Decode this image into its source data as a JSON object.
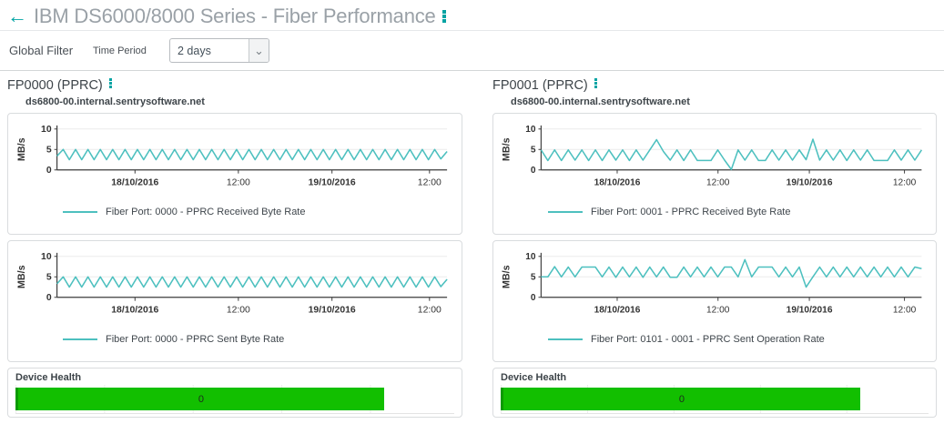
{
  "header": {
    "back_icon": "←",
    "title": "IBM DS6000/8000 Series - Fiber Performance",
    "menu_icon": "vertical-dots",
    "accent_color": "#00a3a3"
  },
  "filter": {
    "title": "Global Filter",
    "field_label": "Time Period",
    "selected_value": "2 days",
    "chevron": "⌄"
  },
  "panels": [
    {
      "title": "FP0000 (PPRC)",
      "host": "ds6800-00.internal.sentrysoftware.net",
      "health": {
        "label": "Device Health",
        "value": "0",
        "color": "#12bf00"
      }
    },
    {
      "title": "FP0001 (PPRC)",
      "host": "ds6800-00.internal.sentrysoftware.net",
      "health": {
        "label": "Device Health",
        "value": "0",
        "color": "#12bf00"
      }
    }
  ],
  "chart_data": [
    {
      "type": "line",
      "panel": "FP0000 (PPRC)",
      "legend": "Fiber Port: 0000 - PPRC Received Byte Rate",
      "color": "#4dc0bf",
      "ylabel": "MB/s",
      "ylim": [
        0,
        10
      ],
      "yticks": [
        0,
        5,
        10
      ],
      "grid": true,
      "legend_position": "bottom-left",
      "xticks": [
        {
          "label": "18/10/2016",
          "pos": 0.2,
          "bold": true
        },
        {
          "label": "12:00",
          "pos": 0.465,
          "bold": false
        },
        {
          "label": "19/10/2016",
          "pos": 0.705,
          "bold": true
        },
        {
          "label": "12:00",
          "pos": 0.955,
          "bold": false
        }
      ],
      "values": [
        3.4,
        5,
        2.5,
        5,
        2.5,
        5,
        2.5,
        5,
        2.5,
        5,
        2.5,
        5,
        2.5,
        5,
        2.5,
        5,
        2.5,
        5,
        2.5,
        5,
        2.5,
        5,
        2.5,
        5,
        2.5,
        5,
        2.5,
        5,
        2.5,
        5,
        2.5,
        5,
        2.5,
        5,
        2.5,
        5,
        2.5,
        5,
        2.5,
        5,
        2.5,
        5,
        2.5,
        5,
        2.5,
        5,
        2.5,
        5,
        2.5,
        5,
        2.5,
        5,
        2.5,
        5,
        2.5,
        5,
        2.5,
        5,
        2.5,
        5,
        2.5,
        5,
        2.7,
        4.5
      ]
    },
    {
      "type": "line",
      "panel": "FP0000 (PPRC)",
      "legend": "Fiber Port: 0000 - PPRC Sent Byte Rate",
      "color": "#4dc0bf",
      "ylabel": "MB/s",
      "ylim": [
        0,
        10
      ],
      "yticks": [
        0,
        5,
        10
      ],
      "grid": true,
      "legend_position": "bottom-left",
      "xticks": [
        {
          "label": "18/10/2016",
          "pos": 0.2,
          "bold": true
        },
        {
          "label": "12:00",
          "pos": 0.465,
          "bold": false
        },
        {
          "label": "19/10/2016",
          "pos": 0.705,
          "bold": true
        },
        {
          "label": "12:00",
          "pos": 0.955,
          "bold": false
        }
      ],
      "values": [
        3.3,
        5,
        2.5,
        5,
        2.5,
        5,
        2.5,
        5,
        2.5,
        5,
        2.5,
        5,
        2.5,
        5,
        2.5,
        5,
        2.5,
        5,
        2.5,
        5,
        2.5,
        5,
        2.5,
        5,
        2.5,
        5,
        2.5,
        5,
        2.5,
        5,
        2.5,
        5,
        2.5,
        5,
        2.5,
        5,
        2.5,
        5,
        2.5,
        5,
        2.5,
        5,
        2.5,
        5,
        2.5,
        5,
        2.5,
        5,
        2.5,
        5,
        2.5,
        5,
        2.5,
        5,
        2.5,
        5,
        2.5,
        5,
        2.5,
        5,
        2.5,
        5,
        2.6,
        4.4
      ]
    },
    {
      "type": "line",
      "panel": "FP0001 (PPRC)",
      "legend": "Fiber Port: 0001 - PPRC Received Byte Rate",
      "color": "#4dc0bf",
      "ylabel": "MB/s",
      "ylim": [
        0,
        10
      ],
      "yticks": [
        0,
        5,
        10
      ],
      "grid": true,
      "legend_position": "bottom-left",
      "xticks": [
        {
          "label": "18/10/2016",
          "pos": 0.2,
          "bold": true
        },
        {
          "label": "12:00",
          "pos": 0.465,
          "bold": false
        },
        {
          "label": "19/10/2016",
          "pos": 0.705,
          "bold": true
        },
        {
          "label": "12:00",
          "pos": 0.955,
          "bold": false
        }
      ],
      "values": [
        4.9,
        2.3,
        4.9,
        2.3,
        4.9,
        2.4,
        4.9,
        2.3,
        4.9,
        2.3,
        4.9,
        2.4,
        4.9,
        2.3,
        4.9,
        2.4,
        4.9,
        7.4,
        4.5,
        2.4,
        4.9,
        2.3,
        4.9,
        2.3,
        2.3,
        2.3,
        4.9,
        2.4,
        0.1,
        4.9,
        2.4,
        4.9,
        2.3,
        2.3,
        4.9,
        2.4,
        4.9,
        2.4,
        4.9,
        2.5,
        7.5,
        2.4,
        4.9,
        2.4,
        4.9,
        2.3,
        4.9,
        2.4,
        4.9,
        2.3,
        2.3,
        2.3,
        4.9,
        2.4,
        4.9,
        2.4,
        4.9
      ]
    },
    {
      "type": "line",
      "panel": "FP0001 (PPRC)",
      "legend": "Fiber Port: 0101 - 0001 - PPRC Sent Operation Rate",
      "color": "#4dc0bf",
      "ylabel": "MB/s",
      "ylim": [
        0,
        10
      ],
      "yticks": [
        0,
        5,
        10
      ],
      "grid": true,
      "legend_position": "bottom-left",
      "xticks": [
        {
          "label": "18/10/2016",
          "pos": 0.2,
          "bold": true
        },
        {
          "label": "12:00",
          "pos": 0.465,
          "bold": false
        },
        {
          "label": "19/10/2016",
          "pos": 0.705,
          "bold": true
        },
        {
          "label": "12:00",
          "pos": 0.955,
          "bold": false
        }
      ],
      "values": [
        5,
        5,
        7.5,
        5,
        7.4,
        5,
        7.4,
        7.4,
        7.4,
        5,
        7.4,
        4.9,
        7.4,
        5,
        7.4,
        4.9,
        7.4,
        5,
        7.4,
        4.9,
        4.9,
        7.4,
        5,
        7.4,
        5,
        7.4,
        5,
        7.4,
        7.4,
        5,
        9.2,
        5,
        7.4,
        7.4,
        7.4,
        5,
        7.4,
        5,
        7.4,
        2.5,
        5,
        7.4,
        5,
        7.4,
        5,
        7.4,
        5,
        7.4,
        5,
        7.4,
        5,
        7.4,
        5,
        7.4,
        5,
        7.4,
        7
      ]
    }
  ]
}
